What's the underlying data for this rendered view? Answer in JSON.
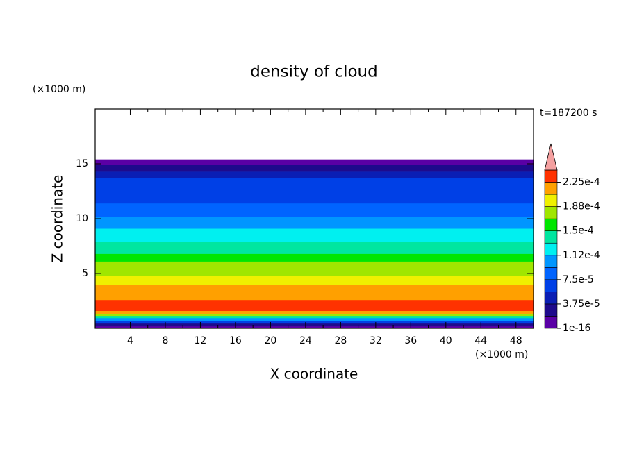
{
  "chart_data": {
    "type": "contour",
    "title": "density of cloud",
    "x_label": "X coordinate",
    "y_label": "Z coordinate",
    "x_unit": "(×1000 m)",
    "y_unit": "(×1000 m)",
    "annotation": "t=187200 s",
    "xlim": [
      0,
      50
    ],
    "xticks": [
      4,
      8,
      12,
      16,
      20,
      24,
      28,
      32,
      36,
      40,
      44,
      48
    ],
    "ylim": [
      0,
      20
    ],
    "yticks": [
      5,
      10,
      15
    ],
    "z_edges": [
      0,
      0.2,
      0.45,
      0.7,
      0.95,
      1.15,
      1.35,
      1.6,
      2.6,
      4.0,
      4.8,
      6.1,
      6.8,
      7.9,
      9.1,
      10.2,
      11.4,
      13.7,
      14.3,
      14.9,
      15.4
    ],
    "values": [
      9.4e-06,
      2.8e-05,
      6.6e-05,
      0.000103,
      0.000141,
      0.000178,
      0.000216,
      0.000234,
      0.000216,
      0.000197,
      0.000178,
      0.000159,
      0.000141,
      0.000122,
      0.000103,
      8.4e-05,
      6.6e-05,
      4.7e-05,
      2.8e-05,
      9.4e-06
    ],
    "colorbar": {
      "levels": [
        1e-16,
        1.875e-05,
        3.75e-05,
        5.625e-05,
        7.5e-05,
        9.375e-05,
        0.0001125,
        0.00013125,
        0.00015,
        0.00016875,
        0.0001875,
        0.00020625,
        0.000225,
        0.00024375
      ],
      "colors": [
        "#5a00a5",
        "#1e0a8c",
        "#0a1eb4",
        "#0040e6",
        "#0064ff",
        "#0096ff",
        "#00f0f0",
        "#00e6a0",
        "#00e600",
        "#a0e600",
        "#f0f000",
        "#ffa000",
        "#ff3200"
      ],
      "extend_color": "#f4a0a0",
      "ticks": [
        {
          "value": 1e-16,
          "label": "1e-16"
        },
        {
          "value": 3.75e-05,
          "label": "3.75e-5"
        },
        {
          "value": 7.5e-05,
          "label": "7.5e-5"
        },
        {
          "value": 0.0001125,
          "label": "1.12e-4"
        },
        {
          "value": 0.00015,
          "label": "1.5e-4"
        },
        {
          "value": 0.0001875,
          "label": "1.88e-4"
        },
        {
          "value": 0.000225,
          "label": "2.25e-4"
        }
      ]
    }
  }
}
